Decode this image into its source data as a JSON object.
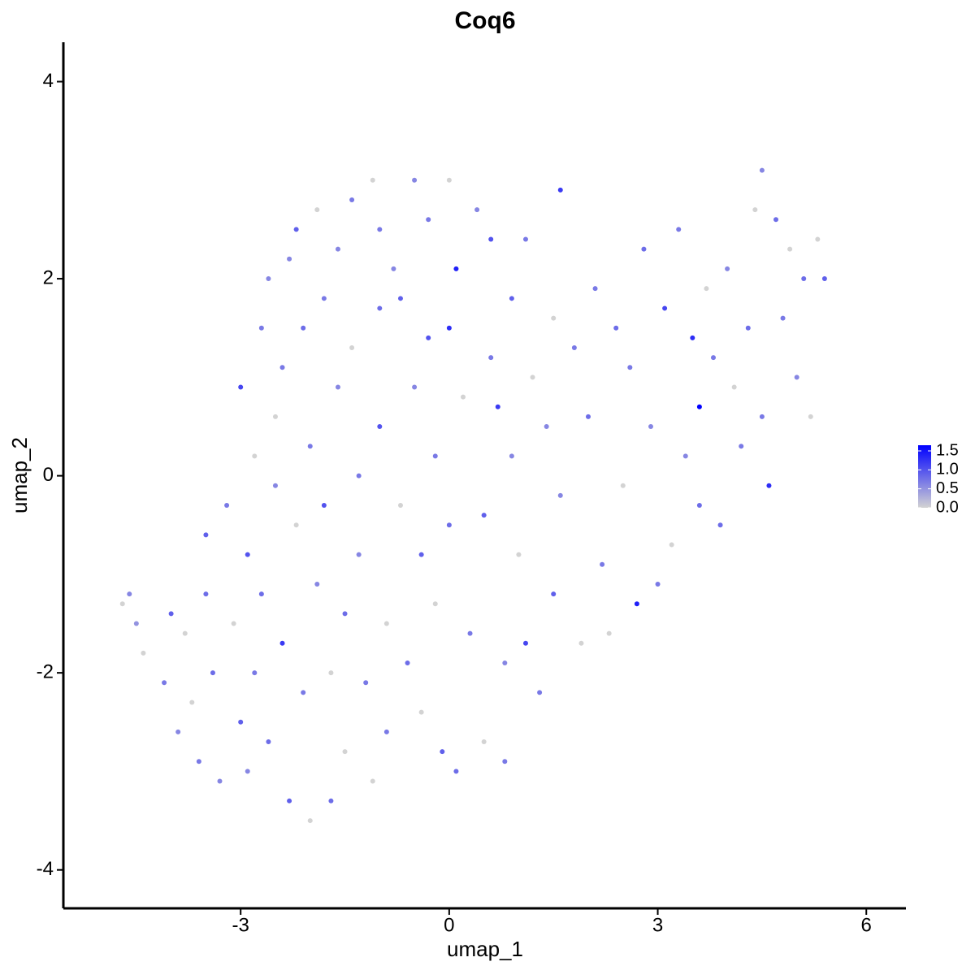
{
  "chart_data": {
    "type": "scatter",
    "title": "Coq6",
    "xlabel": "umap_1",
    "ylabel": "umap_2",
    "xlim": [
      -5.55,
      6.57
    ],
    "ylim": [
      -4.39,
      4.4
    ],
    "xticks": [
      -3,
      0,
      3,
      6
    ],
    "yticks": [
      -4,
      -2,
      0,
      2,
      4
    ],
    "color_low": "#d3d3d3",
    "color_high": "#0000ff",
    "color_lim": [
      0,
      1.65
    ],
    "color_ticks": [
      {
        "value": 0,
        "label": "0.0"
      },
      {
        "value": 0.5,
        "label": "0.5"
      },
      {
        "value": 1,
        "label": "1.0"
      },
      {
        "value": 1.5,
        "label": "1.5"
      }
    ],
    "x": [
      -4.7,
      -4.6,
      -4.5,
      -4.4,
      -4.1,
      -4.0,
      -3.9,
      -3.8,
      -3.7,
      -3.6,
      -3.5,
      -3.5,
      -3.4,
      -3.3,
      -3.2,
      -3.1,
      -3.0,
      -3.0,
      -2.9,
      -2.9,
      -2.8,
      -2.8,
      -2.7,
      -2.7,
      -2.6,
      -2.6,
      -2.5,
      -2.5,
      -2.4,
      -2.4,
      -2.3,
      -2.3,
      -2.2,
      -2.2,
      -2.1,
      -2.1,
      -2.0,
      -2.0,
      -1.9,
      -1.9,
      -1.8,
      -1.8,
      -1.7,
      -1.7,
      -1.6,
      -1.6,
      -1.5,
      -1.5,
      -1.4,
      -1.4,
      -1.3,
      -1.3,
      -1.2,
      -1.1,
      -1.1,
      -1.0,
      -1.0,
      -1.0,
      -0.9,
      -0.9,
      -0.8,
      -0.7,
      -0.7,
      -0.6,
      -0.5,
      -0.5,
      -0.4,
      -0.4,
      -0.3,
      -0.3,
      -0.2,
      -0.2,
      -0.1,
      0.0,
      0.0,
      0.0,
      0.1,
      0.1,
      0.2,
      0.3,
      0.4,
      0.5,
      0.5,
      0.6,
      0.6,
      0.7,
      0.8,
      0.8,
      0.9,
      0.9,
      1.0,
      1.1,
      1.1,
      1.2,
      1.3,
      1.4,
      1.5,
      1.5,
      1.6,
      1.6,
      1.8,
      1.9,
      2.0,
      2.1,
      2.2,
      2.3,
      2.4,
      2.5,
      2.6,
      2.7,
      2.8,
      2.9,
      3.0,
      3.1,
      3.2,
      3.3,
      3.4,
      3.5,
      3.6,
      3.6,
      3.7,
      3.8,
      3.9,
      4.0,
      4.1,
      4.2,
      4.3,
      4.4,
      4.5,
      4.5,
      4.6,
      4.7,
      4.8,
      4.9,
      5.0,
      5.1,
      5.2,
      5.3,
      5.4
    ],
    "y": [
      -1.3,
      -1.2,
      -1.5,
      -1.8,
      -2.1,
      -1.4,
      -2.6,
      -1.6,
      -2.3,
      -2.9,
      -1.2,
      -0.6,
      -2.0,
      -3.1,
      -0.3,
      -1.5,
      -2.5,
      0.9,
      -0.8,
      -3.0,
      0.2,
      -2.0,
      1.5,
      -1.2,
      2.0,
      -2.7,
      -0.1,
      0.6,
      -1.7,
      1.1,
      2.2,
      -3.3,
      -0.5,
      2.5,
      1.5,
      -2.2,
      -3.5,
      0.3,
      2.7,
      -1.1,
      1.8,
      -0.3,
      -3.3,
      -2.0,
      2.3,
      0.9,
      -1.4,
      -2.8,
      2.8,
      1.3,
      0.0,
      -0.8,
      -2.1,
      3.0,
      -3.1,
      2.5,
      1.7,
      0.5,
      -1.5,
      -2.6,
      2.1,
      1.8,
      -0.3,
      -1.9,
      3.0,
      0.9,
      -0.8,
      -2.4,
      2.6,
      1.4,
      0.2,
      -1.3,
      -2.8,
      3.0,
      1.5,
      -0.5,
      2.1,
      -3.0,
      0.8,
      -1.6,
      2.7,
      -0.4,
      -2.7,
      1.2,
      2.4,
      0.7,
      -1.9,
      -2.9,
      1.8,
      0.2,
      -0.8,
      2.4,
      -1.7,
      1.0,
      -2.2,
      0.5,
      1.6,
      -1.2,
      -0.2,
      2.9,
      1.3,
      -1.7,
      0.6,
      1.9,
      -0.9,
      -1.6,
      1.5,
      -0.1,
      1.1,
      -1.3,
      2.3,
      0.5,
      -1.1,
      1.7,
      -0.7,
      2.5,
      0.2,
      1.4,
      -0.3,
      0.7,
      1.9,
      1.2,
      -0.5,
      2.1,
      0.9,
      0.3,
      1.5,
      2.7,
      3.1,
      0.6,
      -0.1,
      2.6,
      1.6,
      2.3,
      1.0,
      2.0,
      0.6,
      2.4,
      2.0
    ],
    "color_values": [
      0,
      0.6,
      0.5,
      0,
      0.7,
      0.9,
      0.6,
      0,
      0,
      0.7,
      0.8,
      0.9,
      0.8,
      0.6,
      0.7,
      0,
      0.9,
      1.1,
      1.0,
      0.6,
      0,
      0.7,
      0.7,
      0.8,
      0.6,
      0.8,
      0.6,
      0,
      1.2,
      0.7,
      0.6,
      0.9,
      0,
      0.9,
      0.8,
      0.7,
      0,
      0.7,
      0,
      0.6,
      0.7,
      1.0,
      0.8,
      0,
      0.6,
      0.6,
      0.8,
      0,
      0.7,
      0,
      0.7,
      0.6,
      0.7,
      0,
      0,
      0.7,
      0.8,
      1.0,
      0,
      0.7,
      0.6,
      0.9,
      0,
      0.8,
      0.6,
      0.6,
      0.9,
      0,
      0.7,
      1.0,
      0.7,
      0,
      0.9,
      0,
      1.3,
      0.8,
      1.4,
      0.8,
      0,
      0.7,
      0.6,
      0.9,
      0,
      0.7,
      1.0,
      1.2,
      0.6,
      0.7,
      0.9,
      0.6,
      0,
      0.7,
      1.1,
      0,
      0.7,
      0.6,
      0,
      0.9,
      0.6,
      1.2,
      0.7,
      0,
      0.8,
      0.7,
      0.7,
      0,
      0.8,
      0,
      0.7,
      1.4,
      0.8,
      0.6,
      0.7,
      1.1,
      0,
      0.7,
      0.6,
      1.3,
      0.8,
      1.7,
      0,
      0.7,
      0.8,
      0.6,
      0,
      0.7,
      0.8,
      0,
      0.6,
      0.7,
      1.3,
      0.8,
      0.7,
      0,
      0.6,
      0.8,
      0,
      0,
      0.9
    ]
  }
}
